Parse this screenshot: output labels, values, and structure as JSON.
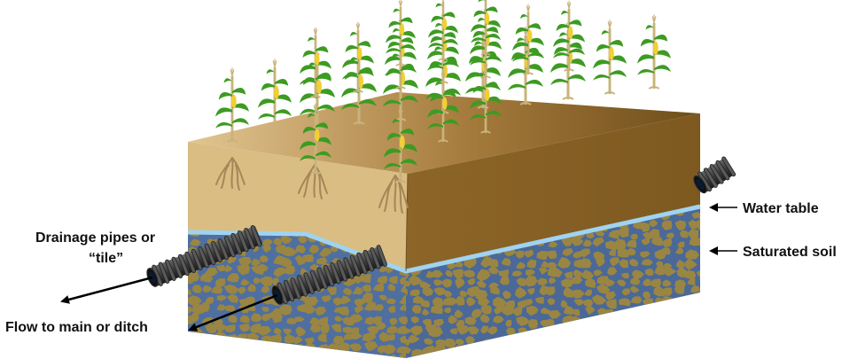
{
  "labels": {
    "water_table": "Water table",
    "saturated_soil": "Saturated soil",
    "drainage_line1": "Drainage pipes or",
    "drainage_line2": "“tile”",
    "flow": "Flow to main or ditch"
  },
  "colors": {
    "soil_top": "#8a6428",
    "soil_top_far": "#6e4e1a",
    "soil_front_upper": "#d9bd83",
    "soil_right_upper": "#8c6428",
    "saturated_base": "#4f6fa0",
    "gravel": "#9a8642",
    "water_line": "#9fd3f2",
    "pipe": "#4a4a4a",
    "pipe_dark": "#1f1f1f",
    "corn_leaf": "#3d9b22",
    "corn_stalk": "#c9b37a",
    "corn_ear": "#f2cf33",
    "root": "#a58758",
    "arrow": "#000000"
  },
  "icons": [
    "corn-plant-icon",
    "drainage-pipe-icon",
    "arrow-icon"
  ]
}
